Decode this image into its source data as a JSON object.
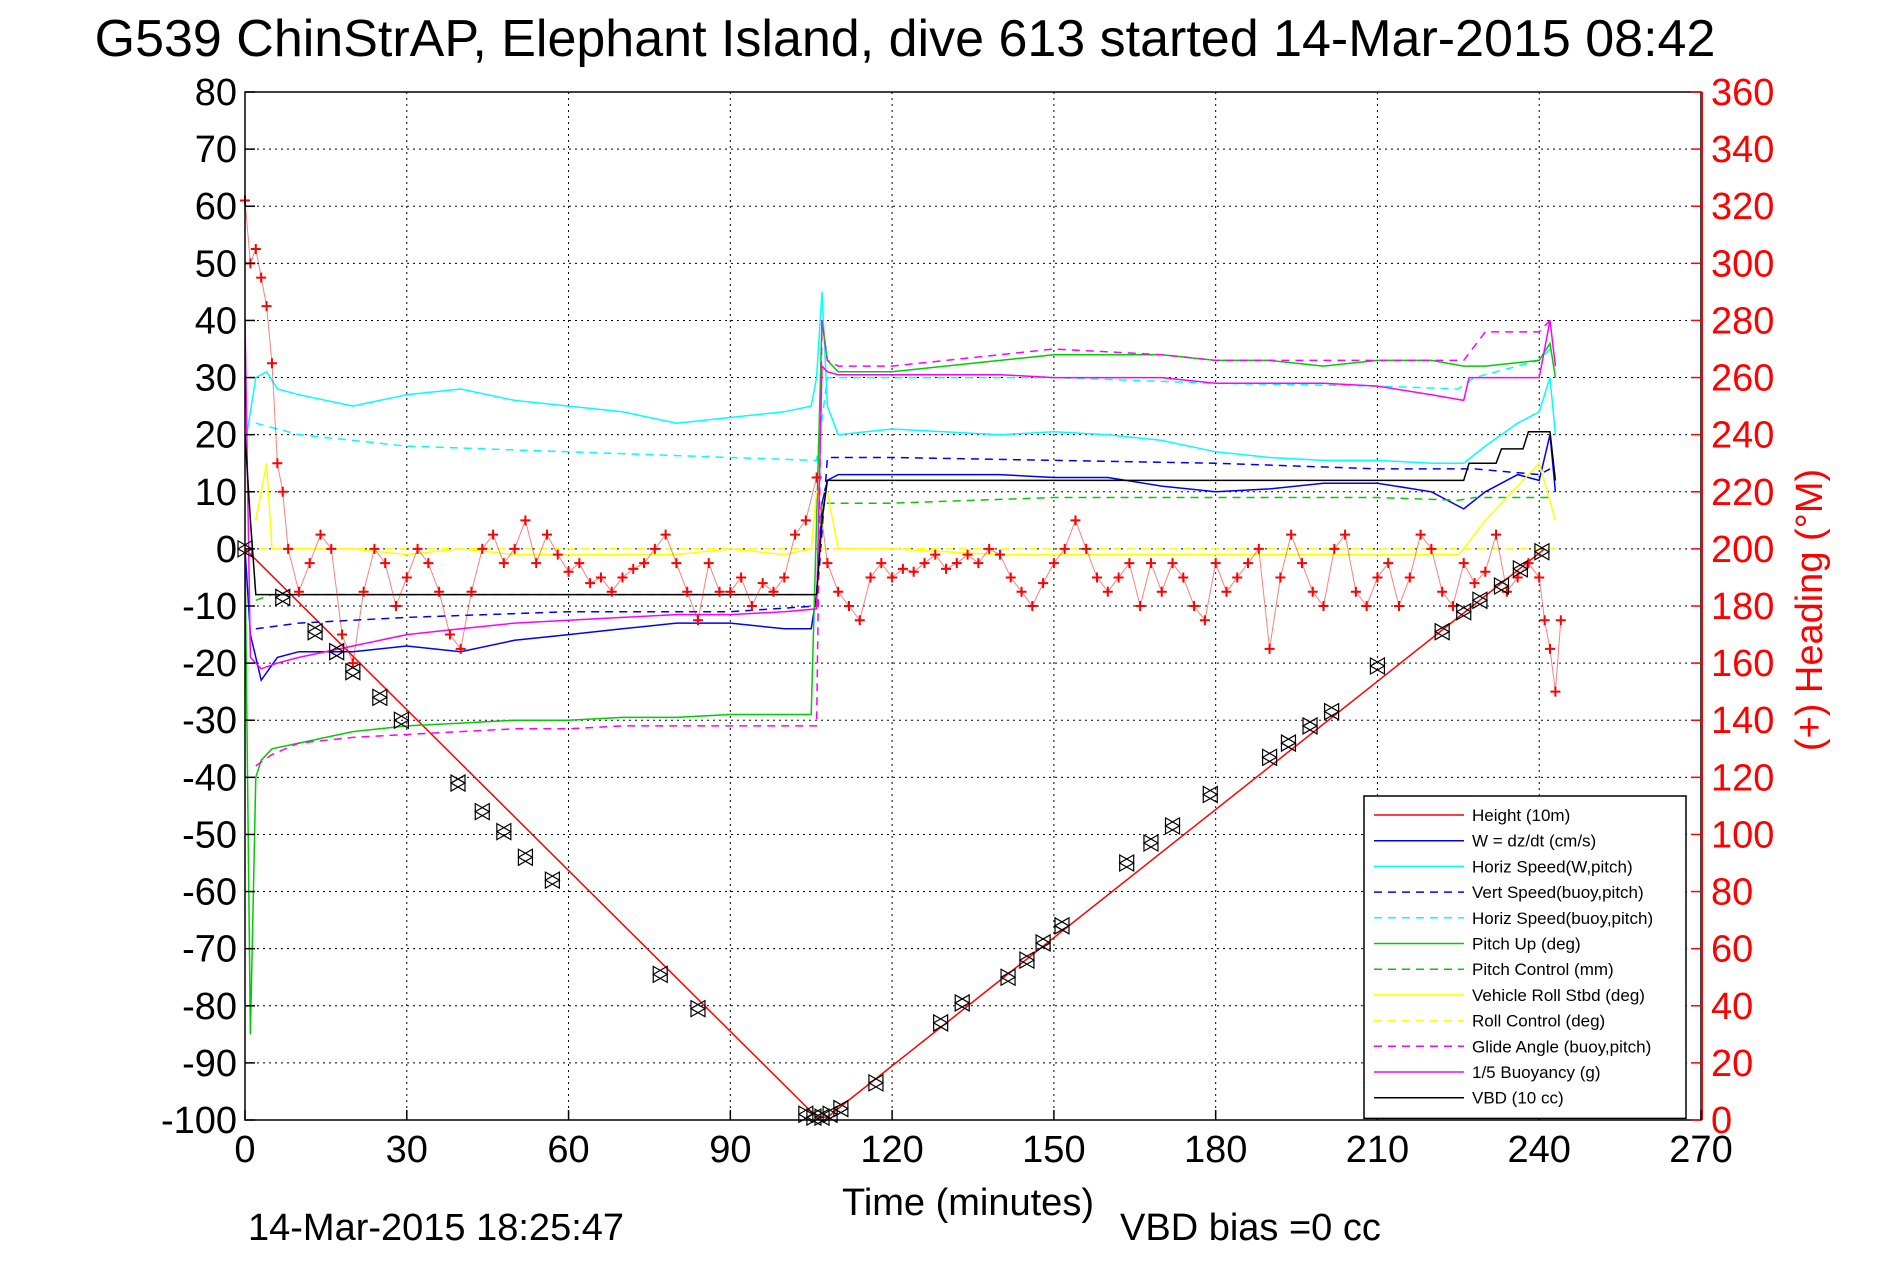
{
  "chart_data": {
    "type": "line",
    "title": "G539 ChinStrAP, Elephant Island, dive 613 started 14-Mar-2015 08:42",
    "xlabel": "Time (minutes)",
    "ylabel": "",
    "y2label": "(+) Heading (°M)",
    "xlim": [
      0,
      270
    ],
    "ylim": [
      -100,
      80
    ],
    "y2lim": [
      0,
      360
    ],
    "x_ticks": [
      0,
      30,
      60,
      90,
      120,
      150,
      180,
      210,
      240,
      270
    ],
    "y_ticks": [
      80,
      70,
      60,
      50,
      40,
      30,
      20,
      10,
      0,
      -10,
      -20,
      -30,
      -40,
      -50,
      -60,
      -70,
      -80,
      -90,
      -100
    ],
    "y2_ticks": [
      360,
      340,
      320,
      300,
      280,
      260,
      240,
      220,
      200,
      180,
      160,
      140,
      120,
      100,
      80,
      60,
      40,
      20,
      0
    ],
    "grid": true,
    "legend_position": "bottom-right",
    "footer_left": "14-Mar-2015 18:25:47",
    "footer_right": "VBD bias =0 cc",
    "colors": {
      "axis_right": "#ff0000"
    },
    "series": [
      {
        "name": "Height (10m)",
        "color": "#ff0000",
        "dash": "solid",
        "x": [
          0,
          106,
          108,
          241
        ],
        "y": [
          0,
          -99.5,
          -99.5,
          0
        ]
      },
      {
        "name": "W = dz/dt (cm/s)",
        "color": "#0000ff",
        "dash": "solid",
        "x": [
          0,
          1,
          3,
          6,
          10,
          20,
          30,
          40,
          50,
          60,
          70,
          80,
          90,
          100,
          105,
          106,
          107,
          108,
          110,
          120,
          140,
          150,
          160,
          170,
          180,
          190,
          200,
          210,
          220,
          226,
          230,
          236,
          240,
          242,
          243
        ],
        "y": [
          0,
          -15,
          -23,
          -19,
          -18,
          -18,
          -17,
          -18,
          -16,
          -15,
          -14,
          -13,
          -13,
          -14,
          -14,
          -8,
          8,
          12,
          13,
          13,
          13,
          12.5,
          12.5,
          11,
          10,
          10.5,
          11.5,
          11.5,
          10,
          7,
          10,
          13,
          12,
          20,
          10
        ]
      },
      {
        "name": "Horiz Speed(W,pitch)",
        "color": "#00ffff",
        "dash": "solid",
        "x": [
          0,
          2,
          4,
          6,
          10,
          20,
          30,
          40,
          50,
          60,
          70,
          80,
          90,
          100,
          105,
          106,
          107,
          108,
          110,
          120,
          140,
          150,
          160,
          170,
          180,
          190,
          200,
          210,
          220,
          226,
          230,
          236,
          240,
          242,
          243
        ],
        "y": [
          18,
          30,
          31,
          28,
          27,
          25,
          27,
          28,
          26,
          25,
          24,
          22,
          23,
          24,
          25,
          30,
          45,
          25,
          20,
          21,
          20,
          20.5,
          20,
          19,
          17,
          16,
          15.5,
          15.5,
          15,
          15,
          18,
          22,
          24,
          30,
          20
        ]
      },
      {
        "name": "Vert Speed(buoy,pitch)",
        "color": "#0000ff",
        "dash": "dashed",
        "x": [
          2,
          10,
          30,
          60,
          90,
          106,
          108,
          120,
          150,
          180,
          210,
          225,
          228,
          240,
          242
        ],
        "y": [
          -14,
          -13,
          -12,
          -11,
          -11,
          -10,
          16,
          16,
          15.5,
          15,
          14,
          14,
          14,
          13,
          14
        ]
      },
      {
        "name": "Horiz Speed(buoy,pitch)",
        "color": "#00ffff",
        "dash": "dashed",
        "x": [
          2,
          10,
          30,
          60,
          90,
          106,
          108,
          120,
          150,
          180,
          210,
          225,
          228,
          240,
          242
        ],
        "y": [
          22,
          20,
          18,
          17,
          16,
          15.5,
          30,
          30,
          30,
          29,
          28.5,
          28,
          30,
          33,
          35
        ]
      },
      {
        "name": "Pitch Up (deg)",
        "color": "#00cc00",
        "dash": "solid",
        "x": [
          0,
          1,
          2,
          3,
          5,
          10,
          20,
          30,
          40,
          50,
          60,
          70,
          80,
          90,
          100,
          105,
          106,
          107,
          108,
          110,
          120,
          140,
          150,
          170,
          180,
          190,
          200,
          210,
          220,
          226,
          230,
          240,
          242,
          243
        ],
        "y": [
          0,
          -85,
          -40,
          -37,
          -35,
          -34,
          -32,
          -31,
          -30.5,
          -30,
          -30,
          -29.5,
          -29.5,
          -29,
          -29,
          -29,
          5,
          40,
          33,
          31,
          31,
          33,
          34,
          34,
          33,
          33,
          32,
          33,
          33,
          32,
          32,
          33,
          36,
          30
        ]
      },
      {
        "name": "Pitch Control (mm)",
        "color": "#00cc00",
        "dash": "dashed",
        "x": [
          2,
          5,
          30,
          60,
          90,
          106,
          107,
          120,
          150,
          180,
          210,
          225,
          228,
          240,
          242
        ],
        "y": [
          -9,
          -8,
          -8,
          -8,
          -8,
          -8,
          8,
          8,
          9,
          9,
          9,
          8.5,
          9,
          9,
          9
        ]
      },
      {
        "name": "Vehicle Roll Stbd (deg)",
        "color": "#ffff00",
        "dash": "solid",
        "x": [
          2,
          4,
          5,
          6,
          10,
          20,
          30,
          40,
          50,
          60,
          70,
          80,
          90,
          100,
          105,
          106,
          108,
          110,
          120,
          140,
          150,
          180,
          210,
          225,
          226,
          230,
          235,
          240,
          243
        ],
        "y": [
          5,
          15,
          0,
          0,
          0,
          0,
          -1,
          0,
          -1,
          -1,
          -1,
          -1,
          0,
          -1,
          0,
          10,
          10,
          0,
          0,
          -1,
          -1,
          -1,
          -1,
          -1,
          0,
          5,
          10,
          15,
          5
        ]
      },
      {
        "name": "Roll Control (deg)",
        "color": "#ffff00",
        "dash": "dashed",
        "x": [
          0,
          106,
          108,
          243
        ],
        "y": [
          0,
          0,
          0,
          0
        ]
      },
      {
        "name": "Glide Angle (buoy,pitch)",
        "color": "#ff00ff",
        "dash": "dashed",
        "x": [
          2,
          5,
          10,
          20,
          30,
          40,
          50,
          60,
          70,
          80,
          90,
          100,
          106,
          107,
          108,
          110,
          120,
          140,
          150,
          170,
          180,
          200,
          210,
          220,
          226,
          230,
          240,
          242
        ],
        "y": [
          -38,
          -36,
          -34,
          -33,
          -32.5,
          -32,
          -31.5,
          -31.5,
          -31,
          -31,
          -31,
          -31,
          -31,
          40,
          33,
          32,
          32,
          34,
          35,
          34,
          33,
          33,
          33,
          33,
          33,
          38,
          38,
          40
        ]
      },
      {
        "name": "1/5 Buoyancy (g)",
        "color": "#ff00ff",
        "dash": "solid",
        "x": [
          0,
          1,
          3,
          6,
          10,
          20,
          30,
          40,
          50,
          60,
          70,
          80,
          90,
          100,
          106,
          107,
          108,
          110,
          120,
          140,
          150,
          170,
          180,
          200,
          210,
          220,
          226,
          227,
          240,
          242,
          243
        ],
        "y": [
          40,
          -19,
          -21,
          -20,
          -19,
          -17,
          -15,
          -14,
          -13,
          -12.5,
          -12,
          -11.5,
          -11.5,
          -11,
          -10.5,
          32,
          31,
          30.5,
          30.5,
          30.5,
          30,
          30,
          29,
          29,
          28.5,
          27,
          26,
          30,
          30,
          40,
          32
        ]
      },
      {
        "name": "VBD (10 cc)",
        "color": "#000000",
        "dash": "solid",
        "x": [
          0,
          1,
          2,
          106,
          107,
          108,
          220,
          226,
          227,
          228,
          232,
          233,
          237,
          238,
          242,
          243
        ],
        "y": [
          20,
          5,
          -8,
          -8,
          5,
          12,
          12,
          12,
          15,
          15,
          15,
          17.5,
          17.5,
          20.5,
          20.5,
          12
        ]
      },
      {
        "name": "(+) Heading",
        "color": "#ff0000",
        "marker": "+",
        "axis": "right",
        "x": [
          0,
          1,
          2,
          3,
          4,
          5,
          6,
          7,
          8,
          10,
          12,
          14,
          16,
          18,
          20,
          22,
          24,
          26,
          28,
          30,
          32,
          34,
          36,
          38,
          40,
          42,
          44,
          46,
          48,
          50,
          52,
          54,
          56,
          58,
          60,
          62,
          64,
          66,
          68,
          70,
          72,
          74,
          76,
          78,
          80,
          82,
          84,
          86,
          88,
          90,
          92,
          94,
          96,
          98,
          100,
          102,
          104,
          106,
          108,
          110,
          112,
          114,
          116,
          118,
          120,
          122,
          124,
          126,
          128,
          130,
          132,
          134,
          136,
          138,
          140,
          142,
          144,
          146,
          148,
          150,
          152,
          154,
          156,
          158,
          160,
          162,
          164,
          166,
          168,
          170,
          172,
          174,
          176,
          178,
          180,
          182,
          184,
          186,
          188,
          190,
          192,
          194,
          196,
          198,
          200,
          202,
          204,
          206,
          208,
          210,
          212,
          214,
          216,
          218,
          220,
          222,
          224,
          226,
          228,
          230,
          232,
          234,
          236,
          238,
          240,
          241,
          242,
          243,
          244
        ],
        "y": [
          322,
          300,
          305,
          295,
          285,
          265,
          230,
          220,
          200,
          185,
          195,
          205,
          200,
          170,
          160,
          185,
          200,
          195,
          180,
          190,
          200,
          195,
          185,
          170,
          165,
          185,
          200,
          205,
          195,
          200,
          210,
          195,
          205,
          198,
          192,
          195,
          188,
          190,
          185,
          190,
          193,
          195,
          200,
          205,
          195,
          185,
          175,
          195,
          185,
          185,
          190,
          180,
          188,
          185,
          190,
          205,
          210,
          225,
          195,
          185,
          180,
          175,
          190,
          195,
          190,
          193,
          192,
          195,
          198,
          193,
          195,
          198,
          195,
          200,
          198,
          190,
          185,
          180,
          188,
          195,
          200,
          210,
          200,
          190,
          185,
          190,
          195,
          180,
          195,
          185,
          195,
          190,
          180,
          175,
          195,
          185,
          190,
          195,
          200,
          165,
          190,
          205,
          195,
          185,
          180,
          200,
          205,
          185,
          180,
          190,
          195,
          180,
          190,
          205,
          200,
          185,
          180,
          195,
          188,
          192,
          205,
          185,
          190,
          195,
          190,
          175,
          165,
          150,
          175
        ]
      },
      {
        "name": "",
        "color": "#000000",
        "marker": "triangle-pair",
        "x": [
          0,
          7,
          13,
          17,
          20,
          25,
          29,
          39.5,
          44,
          48,
          52,
          57,
          77,
          84,
          104,
          105.5,
          107,
          108.5,
          110.5,
          117,
          129,
          133,
          141.5,
          145,
          148,
          151.5,
          163.5,
          168,
          172,
          179,
          190,
          193.5,
          197.5,
          201.5,
          210,
          222,
          226,
          229,
          233,
          236.5,
          240.5
        ],
        "y": [
          0,
          -8.5,
          -14.5,
          -18,
          -21.5,
          -26,
          -30,
          -41,
          -46,
          -49.5,
          -54,
          -58,
          -74.5,
          -80.5,
          -99,
          -99.5,
          -99.5,
          -99,
          -98,
          -93.5,
          -83,
          -79.5,
          -75,
          -72,
          -69,
          -66,
          -55,
          -51.5,
          -48.5,
          -43,
          -36.5,
          -34,
          -31,
          -28.5,
          -20.5,
          -14.5,
          -11,
          -9,
          -6.5,
          -3.5,
          -0.5
        ]
      }
    ]
  }
}
